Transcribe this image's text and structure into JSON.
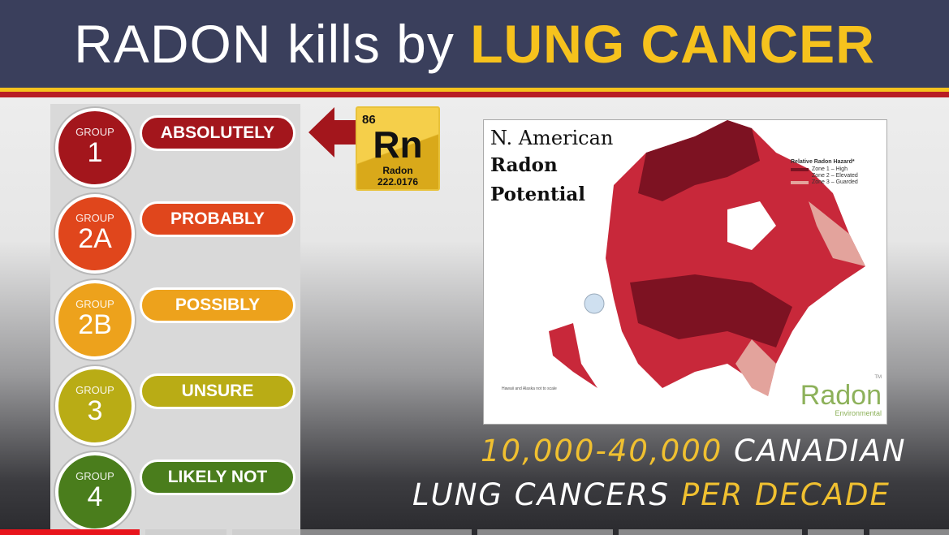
{
  "header": {
    "title_white": "RADON kills by",
    "title_yellow": "LUNG CANCER"
  },
  "groups": [
    {
      "group_label": "GROUP",
      "number": "1",
      "category": "ABSOLUTELY",
      "color": "#a3161c"
    },
    {
      "group_label": "GROUP",
      "number": "2A",
      "category": "PROBABLY",
      "color": "#e0461c"
    },
    {
      "group_label": "GROUP",
      "number": "2B",
      "category": "POSSIBLY",
      "color": "#eda21c"
    },
    {
      "group_label": "GROUP",
      "number": "3",
      "category": "UNSURE",
      "color": "#b9ac15"
    },
    {
      "group_label": "GROUP",
      "number": "4",
      "category": "LIKELY NOT",
      "color": "#4a7d1c"
    }
  ],
  "element": {
    "atomic_number": "86",
    "symbol": "Rn",
    "name": "Radon",
    "mass": "222.0176"
  },
  "map": {
    "title_line1": "N. American",
    "title_line2": "Radon",
    "title_line3": "Potential",
    "legend_title": "Relative Radon Hazard*",
    "legend": [
      {
        "label": "Zone 1 – High",
        "color": "#7d1222"
      },
      {
        "label": "Zone 2 – Elevated",
        "color": "#c8283a"
      },
      {
        "label": "Zone 3 – Guarded",
        "color": "#e3a39c"
      }
    ],
    "note": "Hawaii and Alaska not to scale",
    "logo_main": "Radon",
    "logo_sub": "Environmental",
    "logo_tm": "TM"
  },
  "caption": {
    "range": "10,000-40,000",
    "word1": "CANADIAN",
    "line2_white": "LUNG CANCERS",
    "line2_yellow": "PER DECADE"
  },
  "progress": {
    "played_fraction": 0.24,
    "played_color": "#e8141c"
  }
}
